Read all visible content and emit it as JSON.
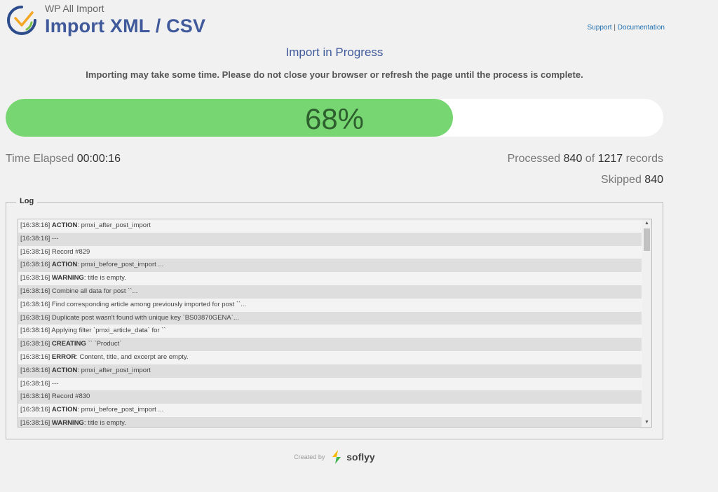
{
  "header": {
    "subtitle": "WP All Import",
    "title": "Import XML / CSV",
    "support_label": "Support",
    "separator": "|",
    "documentation_label": "Documentation"
  },
  "progress": {
    "title": "Import in Progress",
    "note": "Importing may take some time. Please do not close your browser or refresh the page until the process is complete.",
    "percent_value": 68,
    "percent_label": "68%"
  },
  "stats": {
    "elapsed_label": "Time Elapsed",
    "elapsed_value": "00:00:16",
    "processed_label": "Processed",
    "processed_value": "840",
    "of_label": "of",
    "total_value": "1217",
    "records_label": "records",
    "skipped_label": "Skipped",
    "skipped_value": "840"
  },
  "log": {
    "legend": "Log",
    "rows": [
      {
        "time": "[16:38:16]",
        "keyword": "ACTION",
        "text": ": pmxi_after_post_import"
      },
      {
        "time": "[16:38:16]",
        "keyword": "",
        "text": "---"
      },
      {
        "time": "[16:38:16]",
        "keyword": "",
        "text": "Record #829"
      },
      {
        "time": "[16:38:16]",
        "keyword": "ACTION",
        "text": ": pmxi_before_post_import ..."
      },
      {
        "time": "[16:38:16]",
        "keyword": "WARNING",
        "text": ": title is empty."
      },
      {
        "time": "[16:38:16]",
        "keyword": "",
        "text": "Combine all data for post ``..."
      },
      {
        "time": "[16:38:16]",
        "keyword": "",
        "text": "Find corresponding article among previously imported for post ``..."
      },
      {
        "time": "[16:38:16]",
        "keyword": "",
        "text": "Duplicate post wasn't found with unique key `BS03870GENA`..."
      },
      {
        "time": "[16:38:16]",
        "keyword": "",
        "text": "Applying filter `pmxi_article_data` for ``"
      },
      {
        "time": "[16:38:16]",
        "keyword": "CREATING",
        "text": " `` `Product`"
      },
      {
        "time": "[16:38:16]",
        "keyword": "ERROR",
        "text": ": Content, title, and excerpt are empty."
      },
      {
        "time": "[16:38:16]",
        "keyword": "ACTION",
        "text": ": pmxi_after_post_import"
      },
      {
        "time": "[16:38:16]",
        "keyword": "",
        "text": "---"
      },
      {
        "time": "[16:38:16]",
        "keyword": "",
        "text": "Record #830"
      },
      {
        "time": "[16:38:16]",
        "keyword": "ACTION",
        "text": ": pmxi_before_post_import ..."
      },
      {
        "time": "[16:38:16]",
        "keyword": "WARNING",
        "text": ": title is empty."
      }
    ]
  },
  "footer": {
    "created_by": "Created by",
    "company": "soflyy"
  },
  "icons": {
    "logo": "wp-all-import-logo-icon",
    "soflyy": "soflyy-logo-icon",
    "scroll_up": "scroll-up-arrow-icon",
    "scroll_down": "scroll-down-arrow-icon"
  },
  "colors": {
    "accent": "#40599a",
    "progress_fill": "#77d672",
    "progress_text": "#2e5f2e"
  }
}
